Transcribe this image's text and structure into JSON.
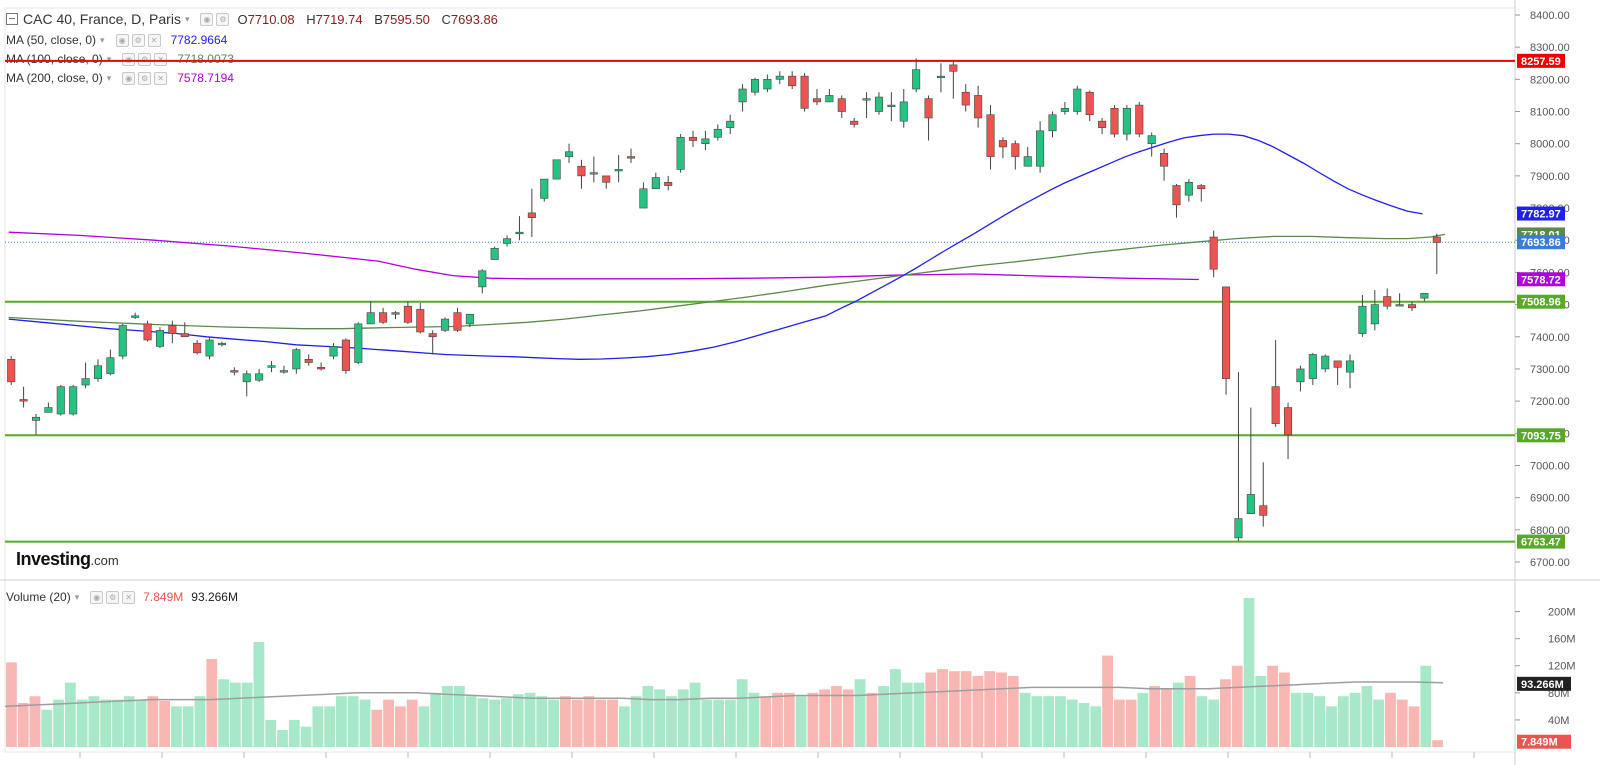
{
  "header": {
    "title": "CAC 40, France, D, Paris",
    "open_label": "O",
    "open": "7710.08",
    "high_label": "H",
    "high": "7719.74",
    "low_label": "B",
    "low": "7595.50",
    "close_label": "C",
    "close": "7693.86"
  },
  "indicators": [
    {
      "label": "MA (50, close, 0)",
      "value": "7782.9664",
      "color": "#1f1ff0"
    },
    {
      "label": "MA (100, close, 0)",
      "value": "7718.0073",
      "color": "#5a8a4a"
    },
    {
      "label": "MA (200, close, 0)",
      "value": "7578.7194",
      "color": "#b000e0"
    }
  ],
  "volume_header": {
    "label": "Volume (20)",
    "value": "7.849M",
    "avg": "93.266M"
  },
  "logo": {
    "brand": "Investing",
    "suffix": ".com"
  },
  "colors": {
    "up": "#26c281",
    "down": "#ef5350",
    "volume_up": "#a7e8c9",
    "volume_down": "#f9b7b3",
    "resistance": "#ee0000",
    "support": "#58a829",
    "last_price": "#3a7bd5",
    "volume_avg": "#9e9e9e"
  },
  "chart_data": {
    "type": "candlestick",
    "title": "CAC 40, France, D, Paris",
    "price_axis": {
      "min": 6700,
      "max": 8400,
      "ticks": [
        "8400.00",
        "8300.00",
        "8200.00",
        "8100.00",
        "8000.00",
        "7900.00",
        "7800.00",
        "7700.00",
        "7600.00",
        "7500.00",
        "7400.00",
        "7300.00",
        "7200.00",
        "7100.00",
        "7000.00",
        "6900.00",
        "6800.00",
        "6700.00"
      ]
    },
    "horizontal_levels": [
      {
        "value": 8257.59,
        "label": "8257.59",
        "color": "#ee0000"
      },
      {
        "value": 7508.96,
        "label": "7508.96",
        "color": "#58a829"
      },
      {
        "value": 7093.75,
        "label": "7093.75",
        "color": "#58a829"
      },
      {
        "value": 6763.47,
        "label": "6763.47",
        "color": "#58a829"
      }
    ],
    "price_labels": [
      {
        "value": 7782.97,
        "label": "7782.97",
        "color": "#1f1ff0"
      },
      {
        "value": 7718.01,
        "label": "7718.01",
        "color": "#5a8a4a"
      },
      {
        "value": 7693.86,
        "label": "7693.86",
        "color": "#3a7bd5"
      },
      {
        "value": 7578.72,
        "label": "7578.72",
        "color": "#b000e0"
      }
    ],
    "candles": [
      [
        7330,
        7260,
        7340,
        7250
      ],
      [
        7205,
        7200,
        7245,
        7180
      ],
      [
        7140,
        7150,
        7160,
        7095
      ],
      [
        7165,
        7180,
        7195,
        7165
      ],
      [
        7160,
        7245,
        7250,
        7155
      ],
      [
        7160,
        7245,
        7250,
        7155
      ],
      [
        7250,
        7270,
        7320,
        7240
      ],
      [
        7270,
        7310,
        7330,
        7260
      ],
      [
        7285,
        7335,
        7360,
        7280
      ],
      [
        7340,
        7435,
        7440,
        7330
      ],
      [
        7460,
        7465,
        7475,
        7455
      ],
      [
        7440,
        7390,
        7450,
        7385
      ],
      [
        7370,
        7420,
        7430,
        7365
      ],
      [
        7435,
        7410,
        7450,
        7380
      ],
      [
        7410,
        7400,
        7445,
        7400
      ],
      [
        7380,
        7350,
        7390,
        7345
      ],
      [
        7340,
        7390,
        7400,
        7330
      ],
      [
        7375,
        7380,
        7385,
        7370
      ],
      [
        7295,
        7290,
        7305,
        7280
      ],
      [
        7260,
        7285,
        7295,
        7215
      ],
      [
        7265,
        7285,
        7300,
        7260
      ],
      [
        7305,
        7310,
        7325,
        7290
      ],
      [
        7290,
        7295,
        7310,
        7285
      ],
      [
        7300,
        7360,
        7365,
        7285
      ],
      [
        7330,
        7320,
        7345,
        7310
      ],
      [
        7305,
        7300,
        7320,
        7295
      ],
      [
        7340,
        7370,
        7380,
        7330
      ],
      [
        7390,
        7295,
        7395,
        7285
      ],
      [
        7320,
        7440,
        7445,
        7315
      ],
      [
        7440,
        7475,
        7510,
        7440
      ],
      [
        7475,
        7445,
        7490,
        7440
      ],
      [
        7475,
        7470,
        7480,
        7455
      ],
      [
        7495,
        7445,
        7510,
        7440
      ],
      [
        7485,
        7415,
        7505,
        7410
      ],
      [
        7410,
        7400,
        7420,
        7345
      ],
      [
        7420,
        7455,
        7460,
        7415
      ],
      [
        7475,
        7420,
        7490,
        7415
      ],
      [
        7440,
        7470,
        7470,
        7430
      ],
      [
        7555,
        7605,
        7610,
        7535
      ],
      [
        7640,
        7675,
        7680,
        7640
      ],
      [
        7690,
        7705,
        7715,
        7680
      ],
      [
        7720,
        7725,
        7775,
        7700
      ],
      [
        7785,
        7770,
        7860,
        7710
      ],
      [
        7830,
        7890,
        7890,
        7820
      ],
      [
        7890,
        7950,
        7950,
        7890
      ],
      [
        7960,
        7975,
        8000,
        7940
      ],
      [
        7930,
        7900,
        7950,
        7860
      ],
      [
        7910,
        7910,
        7960,
        7880
      ],
      [
        7900,
        7880,
        7900,
        7860
      ],
      [
        7920,
        7920,
        7965,
        7880
      ],
      [
        7960,
        7955,
        7985,
        7940
      ],
      [
        7800,
        7860,
        7880,
        7800
      ],
      [
        7860,
        7895,
        7910,
        7860
      ],
      [
        7880,
        7870,
        7900,
        7855
      ],
      [
        7920,
        8020,
        8030,
        7910
      ],
      [
        8020,
        8010,
        8040,
        7990
      ],
      [
        8000,
        8015,
        8040,
        7980
      ],
      [
        8020,
        8045,
        8060,
        8010
      ],
      [
        8050,
        8070,
        8090,
        8030
      ],
      [
        8130,
        8170,
        8185,
        8100
      ],
      [
        8160,
        8200,
        8205,
        8150
      ],
      [
        8170,
        8200,
        8215,
        8160
      ],
      [
        8200,
        8210,
        8225,
        8185
      ],
      [
        8210,
        8180,
        8225,
        8170
      ],
      [
        8210,
        8110,
        8220,
        8100
      ],
      [
        8140,
        8130,
        8170,
        8120
      ],
      [
        8130,
        8150,
        8170,
        8130
      ],
      [
        8140,
        8100,
        8150,
        8080
      ],
      [
        8070,
        8060,
        8080,
        8050
      ],
      [
        8140,
        8140,
        8160,
        8080
      ],
      [
        8100,
        8145,
        8160,
        8090
      ],
      [
        8120,
        8120,
        8160,
        8070
      ],
      [
        8070,
        8130,
        8170,
        8050
      ],
      [
        8170,
        8230,
        8265,
        8160
      ],
      [
        8140,
        8080,
        8150,
        8010
      ],
      [
        8210,
        8210,
        8250,
        8160
      ],
      [
        8245,
        8225,
        8255,
        8140
      ],
      [
        8160,
        8120,
        8185,
        8100
      ],
      [
        8150,
        8080,
        8180,
        8050
      ],
      [
        8090,
        7960,
        8120,
        7920
      ],
      [
        8010,
        7990,
        8020,
        7955
      ],
      [
        8000,
        7960,
        8010,
        7920
      ],
      [
        7930,
        7960,
        7990,
        7930
      ],
      [
        7930,
        8040,
        8070,
        7910
      ],
      [
        8040,
        8090,
        8100,
        8020
      ],
      [
        8100,
        8110,
        8130,
        8090
      ],
      [
        8100,
        8170,
        8180,
        8090
      ],
      [
        8160,
        8090,
        8165,
        8070
      ],
      [
        8070,
        8050,
        8080,
        8030
      ],
      [
        8110,
        8030,
        8120,
        8020
      ],
      [
        8030,
        8110,
        8120,
        8010
      ],
      [
        8120,
        8030,
        8130,
        8020
      ],
      [
        8000,
        8025,
        8035,
        7960
      ],
      [
        7970,
        7930,
        7985,
        7885
      ],
      [
        7870,
        7810,
        7875,
        7770
      ],
      [
        7840,
        7880,
        7890,
        7820
      ],
      [
        7870,
        7860,
        7875,
        7820
      ],
      [
        7710,
        7610,
        7730,
        7585
      ],
      [
        7555,
        7270,
        7555,
        7220
      ],
      [
        6775,
        6835,
        7290,
        6765
      ],
      [
        6850,
        6910,
        7180,
        6870
      ],
      [
        6875,
        6845,
        7010,
        6810
      ],
      [
        7245,
        7130,
        7390,
        7120
      ],
      [
        7180,
        7095,
        7195,
        7020
      ],
      [
        7260,
        7300,
        7310,
        7230
      ],
      [
        7270,
        7345,
        7350,
        7250
      ],
      [
        7300,
        7340,
        7345,
        7290
      ],
      [
        7325,
        7305,
        7320,
        7250
      ],
      [
        7290,
        7325,
        7345,
        7240
      ],
      [
        7410,
        7495,
        7530,
        7400
      ],
      [
        7440,
        7500,
        7545,
        7420
      ],
      [
        7525,
        7495,
        7550,
        7485
      ],
      [
        7500,
        7500,
        7535,
        7495
      ],
      [
        7500,
        7490,
        7510,
        7480
      ],
      [
        7520,
        7535,
        7530,
        7510
      ],
      [
        7710,
        7693,
        7720,
        7595
      ]
    ],
    "ma50": [
      7455,
      7445,
      7435,
      7425,
      7418,
      7410,
      7400,
      7392,
      7385,
      7375,
      7370,
      7365,
      7360,
      7355,
      7350,
      7345,
      7342,
      7340,
      7338,
      7335,
      7332,
      7330,
      7331,
      7334,
      7338,
      7345,
      7355,
      7368,
      7385,
      7405,
      7425,
      7445,
      7465,
      7488,
      7510,
      7535,
      7560,
      7585,
      7612,
      7640,
      7668,
      7695,
      7722,
      7750,
      7778,
      7805,
      7830,
      7855,
      7878,
      7898,
      7918,
      7938,
      7958,
      7975,
      7990,
      8005,
      8018,
      8025,
      8030,
      8030,
      8025,
      8010,
      7990,
      7965,
      7940,
      7912,
      7885,
      7860,
      7840,
      7822,
      7805,
      7790,
      7782
    ],
    "ma50_x": [
      5,
      50,
      95,
      140,
      185,
      230,
      270,
      310,
      350,
      390,
      430,
      470,
      500,
      530,
      560,
      590,
      620,
      650,
      680,
      710,
      740,
      770,
      800,
      830,
      860,
      890,
      920,
      950,
      980,
      1010,
      1040,
      1070,
      1100,
      1120,
      1140,
      1160,
      1180,
      1200,
      1220,
      1240,
      1260,
      1280,
      1300,
      1320,
      1340,
      1360,
      1380,
      1400,
      1420,
      1440,
      1460,
      1480,
      1500,
      1520,
      1540,
      1560,
      1580,
      1600,
      1620,
      1640,
      1660,
      1680,
      1700,
      1720,
      1740,
      1760,
      1780,
      1800,
      1820,
      1840,
      1860,
      1880,
      1900
    ],
    "ma100": [
      7460,
      7448,
      7438,
      7430,
      7425,
      7425,
      7428,
      7430,
      7432,
      7438,
      7445,
      7455,
      7468,
      7480,
      7495,
      7510,
      7525,
      7542,
      7560,
      7575,
      7590,
      7605,
      7620,
      7632,
      7645,
      7660,
      7672,
      7685,
      7695,
      7705,
      7712,
      7712,
      7708,
      7705,
      7705,
      7710,
      7718
    ],
    "ma100_x": [
      5,
      100,
      200,
      300,
      400,
      450,
      500,
      550,
      600,
      650,
      700,
      750,
      800,
      850,
      900,
      950,
      1000,
      1050,
      1100,
      1150,
      1200,
      1250,
      1300,
      1350,
      1400,
      1450,
      1500,
      1550,
      1600,
      1650,
      1700,
      1750,
      1800,
      1850,
      1880,
      1910,
      1930
    ],
    "ma200": [
      7725,
      7715,
      7700,
      7682,
      7660,
      7635,
      7610,
      7590,
      7582,
      7580,
      7580,
      7580,
      7582,
      7585,
      7592,
      7595,
      7588,
      7582,
      7580,
      7578
    ],
    "ma200_x": [
      5,
      100,
      200,
      300,
      400,
      500,
      550,
      600,
      650,
      700,
      800,
      900,
      1000,
      1100,
      1200,
      1300,
      1400,
      1500,
      1550,
      1600
    ]
  },
  "volume_data": {
    "axis_ticks": [
      "200M",
      "160M",
      "120M",
      "80M",
      "40M"
    ],
    "max": 220,
    "bars": [
      [
        0,
        125
      ],
      [
        0,
        65
      ],
      [
        0,
        75
      ],
      [
        1,
        55
      ],
      [
        1,
        70
      ],
      [
        1,
        95
      ],
      [
        1,
        70
      ],
      [
        1,
        75
      ],
      [
        1,
        70
      ],
      [
        1,
        70
      ],
      [
        1,
        75
      ],
      [
        1,
        70
      ],
      [
        0,
        75
      ],
      [
        0,
        68
      ],
      [
        1,
        60
      ],
      [
        1,
        60
      ],
      [
        1,
        75
      ],
      [
        0,
        130
      ],
      [
        1,
        100
      ],
      [
        1,
        95
      ],
      [
        1,
        95
      ],
      [
        1,
        155
      ],
      [
        1,
        40
      ],
      [
        1,
        25
      ],
      [
        1,
        40
      ],
      [
        1,
        30
      ],
      [
        1,
        60
      ],
      [
        1,
        60
      ],
      [
        1,
        75
      ],
      [
        1,
        75
      ],
      [
        1,
        70
      ],
      [
        0,
        55
      ],
      [
        0,
        70
      ],
      [
        0,
        60
      ],
      [
        0,
        70
      ],
      [
        1,
        60
      ],
      [
        1,
        80
      ],
      [
        1,
        90
      ],
      [
        1,
        90
      ],
      [
        1,
        75
      ],
      [
        1,
        72
      ],
      [
        1,
        70
      ],
      [
        1,
        72
      ],
      [
        1,
        78
      ],
      [
        1,
        80
      ],
      [
        1,
        75
      ],
      [
        1,
        70
      ],
      [
        0,
        75
      ],
      [
        0,
        70
      ],
      [
        0,
        75
      ],
      [
        0,
        70
      ],
      [
        0,
        70
      ],
      [
        1,
        60
      ],
      [
        1,
        75
      ],
      [
        1,
        90
      ],
      [
        1,
        85
      ],
      [
        1,
        75
      ],
      [
        1,
        85
      ],
      [
        1,
        95
      ],
      [
        1,
        70
      ],
      [
        1,
        70
      ],
      [
        1,
        70
      ],
      [
        1,
        100
      ],
      [
        1,
        80
      ],
      [
        0,
        75
      ],
      [
        0,
        80
      ],
      [
        0,
        80
      ],
      [
        1,
        75
      ],
      [
        0,
        80
      ],
      [
        0,
        85
      ],
      [
        0,
        90
      ],
      [
        0,
        85
      ],
      [
        1,
        100
      ],
      [
        0,
        80
      ],
      [
        1,
        90
      ],
      [
        1,
        115
      ],
      [
        1,
        95
      ],
      [
        1,
        95
      ],
      [
        0,
        110
      ],
      [
        0,
        115
      ],
      [
        0,
        112
      ],
      [
        0,
        112
      ],
      [
        0,
        105
      ],
      [
        0,
        112
      ],
      [
        0,
        110
      ],
      [
        0,
        105
      ],
      [
        1,
        80
      ],
      [
        1,
        75
      ],
      [
        1,
        75
      ],
      [
        1,
        75
      ],
      [
        1,
        70
      ],
      [
        1,
        65
      ],
      [
        1,
        60
      ],
      [
        0,
        135
      ],
      [
        0,
        70
      ],
      [
        0,
        70
      ],
      [
        1,
        80
      ],
      [
        0,
        90
      ],
      [
        0,
        85
      ],
      [
        1,
        95
      ],
      [
        0,
        105
      ],
      [
        1,
        75
      ],
      [
        1,
        70
      ],
      [
        0,
        100
      ],
      [
        0,
        120
      ],
      [
        1,
        220
      ],
      [
        1,
        105
      ],
      [
        0,
        120
      ],
      [
        0,
        110
      ],
      [
        1,
        80
      ],
      [
        1,
        80
      ],
      [
        1,
        75
      ],
      [
        1,
        60
      ],
      [
        1,
        75
      ],
      [
        1,
        80
      ],
      [
        1,
        90
      ],
      [
        1,
        70
      ],
      [
        0,
        80
      ],
      [
        0,
        70
      ],
      [
        0,
        60
      ],
      [
        1,
        120
      ],
      [
        0,
        10
      ]
    ],
    "avg": [
      60,
      62,
      64,
      66,
      68,
      70,
      70,
      70,
      72,
      74,
      76,
      78,
      80,
      80,
      80,
      78,
      76,
      74,
      72,
      72,
      72,
      72,
      70,
      70,
      72,
      72,
      74,
      76,
      76,
      76,
      78,
      80,
      82,
      84,
      86,
      88,
      88,
      88,
      88,
      86,
      86,
      86,
      88,
      90,
      92,
      94,
      96,
      96,
      96,
      95
    ]
  }
}
